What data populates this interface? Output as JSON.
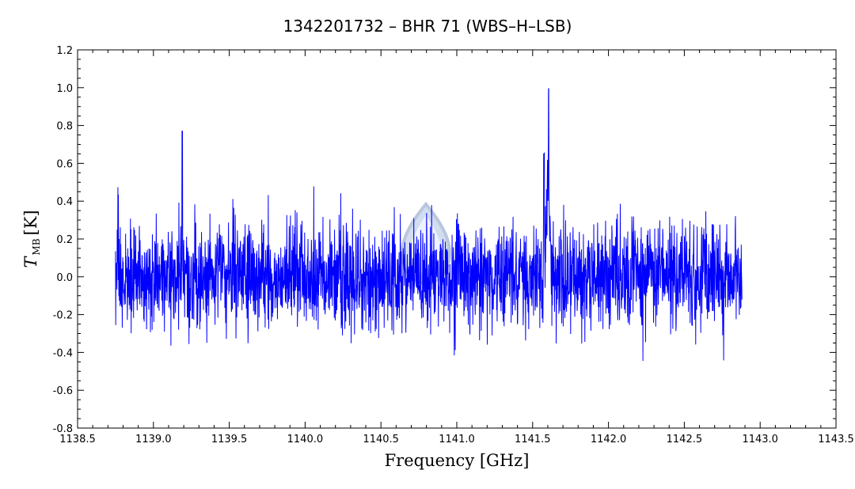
{
  "chart_data": {
    "type": "line",
    "title": "1342201732 – BHR 71 (WBS–H–LSB)",
    "xlabel": "Frequency [GHz]",
    "ylabel_symbol": "T",
    "ylabel_subscript": "MB",
    "ylabel_unit": "[K]",
    "xlim": [
      1138.5,
      1143.5
    ],
    "ylim": [
      -0.8,
      1.2
    ],
    "xticks": [
      "1138.5",
      "1139.0",
      "1139.5",
      "1140.0",
      "1140.5",
      "1141.0",
      "1141.5",
      "1142.0",
      "1142.5",
      "1143.0",
      "1143.5"
    ],
    "yticks": [
      "-0.8",
      "-0.6",
      "-0.4",
      "-0.2",
      "0.0",
      "0.2",
      "0.4",
      "0.6",
      "0.8",
      "1.0",
      "1.2"
    ],
    "grid": false,
    "series": [
      {
        "color": "#0000ff",
        "x_range": [
          1138.75,
          1142.88
        ],
        "noise_rms": 0.14,
        "features": [
          {
            "x": 1139.19,
            "peak": 0.77
          },
          {
            "x": 1141.59,
            "peak": 1.0
          },
          {
            "x": 1141.6,
            "peak": 0.95
          },
          {
            "x": 1141.57,
            "peak": 0.68
          }
        ]
      }
    ],
    "watermark_icon": "herschel-droplet-icon"
  }
}
